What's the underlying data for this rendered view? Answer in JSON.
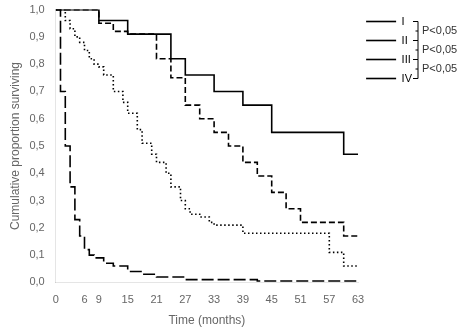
{
  "chart_data": {
    "type": "line",
    "xlabel": "Time (months)",
    "ylabel": "Cumulative proportion surviving",
    "xlim": [
      0,
      63
    ],
    "ylim": [
      0.0,
      1.0
    ],
    "xticks": [
      0,
      6,
      9,
      15,
      21,
      27,
      33,
      39,
      45,
      51,
      57,
      63
    ],
    "yticks": [
      {
        "value": 0.0,
        "label": "0,0"
      },
      {
        "value": 0.1,
        "label": "0,1"
      },
      {
        "value": 0.2,
        "label": "0,2"
      },
      {
        "value": 0.3,
        "label": "0,3"
      },
      {
        "value": 0.4,
        "label": "0,4"
      },
      {
        "value": 0.5,
        "label": "0,5"
      },
      {
        "value": 0.6,
        "label": "0,6"
      },
      {
        "value": 0.7,
        "label": "0,7"
      },
      {
        "value": 0.8,
        "label": "0,8"
      },
      {
        "value": 0.9,
        "label": "0,9"
      },
      {
        "value": 1.0,
        "label": "1,0"
      }
    ],
    "grid": false,
    "legend": "right",
    "series": [
      {
        "name": "I",
        "color": "#000000",
        "line_style": "solid",
        "x": [
          0,
          6,
          9,
          12,
          15,
          18,
          21,
          24,
          27,
          30,
          33,
          36,
          39,
          42,
          45,
          48,
          51,
          54,
          57,
          60,
          63
        ],
        "values": [
          1.0,
          1.0,
          0.96,
          0.96,
          0.91,
          0.91,
          0.91,
          0.82,
          0.76,
          0.76,
          0.7,
          0.7,
          0.65,
          0.65,
          0.55,
          0.55,
          0.55,
          0.55,
          0.55,
          0.47,
          0.47
        ]
      },
      {
        "name": "II",
        "color": "#000000",
        "line_style": "dashed",
        "x": [
          0,
          6,
          9,
          12,
          15,
          18,
          21,
          24,
          27,
          30,
          33,
          36,
          39,
          42,
          45,
          48,
          51,
          54,
          57,
          60,
          63
        ],
        "values": [
          1.0,
          1.0,
          0.95,
          0.92,
          0.91,
          0.91,
          0.82,
          0.75,
          0.65,
          0.6,
          0.55,
          0.5,
          0.44,
          0.39,
          0.33,
          0.27,
          0.22,
          0.22,
          0.22,
          0.17,
          0.17
        ]
      },
      {
        "name": "III",
        "color": "#000000",
        "line_style": "dotted",
        "x": [
          0,
          2,
          3,
          4,
          5,
          6,
          7,
          8,
          9,
          10,
          12,
          14,
          15,
          17,
          18,
          20,
          21,
          23,
          24,
          26,
          27,
          28,
          30,
          32,
          33,
          36,
          39,
          42,
          45,
          48,
          51,
          54,
          57,
          60,
          63
        ],
        "values": [
          1.0,
          0.96,
          0.93,
          0.9,
          0.88,
          0.85,
          0.82,
          0.8,
          0.79,
          0.76,
          0.7,
          0.66,
          0.62,
          0.56,
          0.51,
          0.47,
          0.44,
          0.4,
          0.35,
          0.3,
          0.27,
          0.25,
          0.24,
          0.22,
          0.21,
          0.21,
          0.18,
          0.18,
          0.18,
          0.18,
          0.18,
          0.18,
          0.11,
          0.06,
          0.06
        ]
      },
      {
        "name": "IV",
        "color": "#000000",
        "line_style": "longdash",
        "x": [
          0,
          1,
          2,
          3,
          4,
          5,
          6,
          7,
          8,
          9,
          10,
          12,
          15,
          18,
          21,
          24,
          27,
          30,
          33,
          36,
          39,
          42,
          45,
          48,
          51,
          54,
          57,
          60,
          63
        ],
        "values": [
          1.0,
          0.7,
          0.5,
          0.35,
          0.23,
          0.17,
          0.12,
          0.1,
          0.09,
          0.09,
          0.07,
          0.06,
          0.04,
          0.03,
          0.02,
          0.02,
          0.01,
          0.01,
          0.01,
          0.01,
          0.01,
          0.005,
          0.005,
          0.005,
          0.005,
          0.005,
          0.005,
          0.005,
          0.005
        ]
      }
    ],
    "annotations": [
      {
        "text": "P<0,05",
        "series": [
          "I",
          "II"
        ]
      },
      {
        "text": "P<0,05",
        "series": [
          "II",
          "III"
        ]
      },
      {
        "text": "P<0,05",
        "series": [
          "III",
          "IV"
        ]
      }
    ]
  }
}
